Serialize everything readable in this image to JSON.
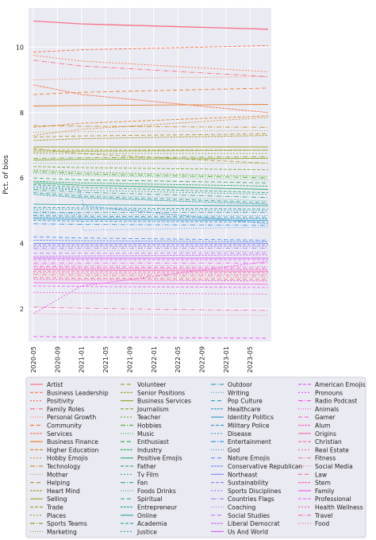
{
  "chart_data": {
    "type": "line",
    "title": "",
    "xlabel": "",
    "ylabel": "Pct. of bios",
    "grid": true,
    "legend_placement": "bottom",
    "x_ticks": [
      "2020-05",
      "2020-09",
      "2021-01",
      "2021-05",
      "2021-09",
      "2022-01",
      "2022-05",
      "2022-09",
      "2023-01",
      "2023-05"
    ],
    "y_ticks": [
      "2",
      "4",
      "6",
      "8",
      "10"
    ],
    "ylim": [
      1.0,
      11.2
    ],
    "x_range": [
      "2020-05",
      "2023-08"
    ],
    "series": [
      {
        "name": "Artist",
        "color": "#f77189",
        "start": 10.8,
        "end": 10.55
      },
      {
        "name": "Business Leadership",
        "color": "#f7754f",
        "start": 9.85,
        "end": 10.05
      },
      {
        "name": "Positivity",
        "color": "#f7754f",
        "start": 9.75,
        "end": 9.25
      },
      {
        "name": "Family Roles",
        "color": "#f77189",
        "start": 9.6,
        "end": 9.1
      },
      {
        "name": "Personal Growth",
        "color": "#f7754f",
        "start": 9.0,
        "end": 9.1
      },
      {
        "name": "Community",
        "color": "#ee7c35",
        "start": 8.55,
        "end": 8.75
      },
      {
        "name": "Services",
        "color": "#f7754f",
        "start": 8.85,
        "end": 8.0
      },
      {
        "name": "Business Finance",
        "color": "#e38232",
        "start": 8.2,
        "end": 8.25
      },
      {
        "name": "Higher Education",
        "color": "#dc8932",
        "start": 7.55,
        "end": 7.9
      },
      {
        "name": "Hobby Emojis",
        "color": "#cf8b32",
        "start": 7.3,
        "end": 7.85
      },
      {
        "name": "Technology",
        "color": "#c79332",
        "start": 7.6,
        "end": 7.55
      },
      {
        "name": "Mother",
        "color": "#bb9832",
        "start": 7.4,
        "end": 7.45
      },
      {
        "name": "Helping",
        "color": "#bb9832",
        "start": 7.25,
        "end": 7.35
      },
      {
        "name": "Heart Mind",
        "color": "#ae9d31",
        "start": 7.15,
        "end": 7.3
      },
      {
        "name": "Selling",
        "color": "#a4a031",
        "start": 6.95,
        "end": 6.95
      },
      {
        "name": "Trade",
        "color": "#9ba431",
        "start": 6.85,
        "end": 6.85
      },
      {
        "name": "Places",
        "color": "#8ea731",
        "start": 6.75,
        "end": 6.75
      },
      {
        "name": "Sports Teams",
        "color": "#82ab31",
        "start": 6.6,
        "end": 6.65
      },
      {
        "name": "Marketing",
        "color": "#72ad31",
        "start": 6.45,
        "end": 6.45
      },
      {
        "name": "Volunteer",
        "color": "#b6a031",
        "start": 6.9,
        "end": 6.45
      },
      {
        "name": "Senior Positions",
        "color": "#a0a531",
        "start": 6.8,
        "end": 6.85
      },
      {
        "name": "Business Services",
        "color": "#8aab31",
        "start": 6.55,
        "end": 6.6
      },
      {
        "name": "Journalism",
        "color": "#77ad31",
        "start": 6.35,
        "end": 6.25
      },
      {
        "name": "Teacher",
        "color": "#64b031",
        "start": 6.25,
        "end": 6.05
      },
      {
        "name": "Hobbies",
        "color": "#4ab234",
        "start": 6.2,
        "end": 6.0
      },
      {
        "name": "Music",
        "color": "#33b347",
        "start": 6.15,
        "end": 5.95
      },
      {
        "name": "Enthusiast",
        "color": "#33b15d",
        "start": 6.0,
        "end": 5.85
      },
      {
        "name": "Industry",
        "color": "#34b06a",
        "start": 5.9,
        "end": 5.75
      },
      {
        "name": "Positive Emojis",
        "color": "#35ae76",
        "start": 5.85,
        "end": 5.65
      },
      {
        "name": "Father",
        "color": "#35ad7f",
        "start": 5.8,
        "end": 5.55
      },
      {
        "name": "Tv Film",
        "color": "#36ac87",
        "start": 5.7,
        "end": 5.5
      },
      {
        "name": "Fan",
        "color": "#36ab8f",
        "start": 5.65,
        "end": 5.4
      },
      {
        "name": "Foods Drinks",
        "color": "#36aa96",
        "start": 5.6,
        "end": 5.3
      },
      {
        "name": "Spiritual",
        "color": "#37a99c",
        "start": 5.55,
        "end": 5.25
      },
      {
        "name": "Entrepreneur",
        "color": "#37a8a2",
        "start": 5.5,
        "end": 5.2
      },
      {
        "name": "Online",
        "color": "#38a7a7",
        "start": 5.2,
        "end": 5.15
      },
      {
        "name": "Academia",
        "color": "#38a6ac",
        "start": 5.1,
        "end": 5.05
      },
      {
        "name": "Justice",
        "color": "#38a5b1",
        "start": 5.05,
        "end": 5.0
      },
      {
        "name": "Outdoor",
        "color": "#39a4b6",
        "start": 4.95,
        "end": 4.95
      },
      {
        "name": "Writing",
        "color": "#39a3bb",
        "start": 4.9,
        "end": 4.85
      },
      {
        "name": "Pop Culture",
        "color": "#3aa2c0",
        "start": 4.85,
        "end": 4.8
      },
      {
        "name": "Healthcare",
        "color": "#3aa1c6",
        "start": 4.8,
        "end": 4.75
      },
      {
        "name": "Identity Politics",
        "color": "#3b9fcb",
        "start": 4.75,
        "end": 4.7
      },
      {
        "name": "Military Police",
        "color": "#3b9ed1",
        "start": 4.7,
        "end": 4.65
      },
      {
        "name": "Disease",
        "color": "#3c9cd8",
        "start": 5.75,
        "end": 4.6
      },
      {
        "name": "Entertainment",
        "color": "#3d9ae1",
        "start": 4.6,
        "end": 4.55
      },
      {
        "name": "God",
        "color": "#4097e9",
        "start": 5.0,
        "end": 4.5
      },
      {
        "name": "Nature Emojis",
        "color": "#5192f2",
        "start": 4.2,
        "end": 4.1
      },
      {
        "name": "Conservative Republican",
        "color": "#6d8df4",
        "start": 4.1,
        "end": 4.05
      },
      {
        "name": "Northeast",
        "color": "#8189f4",
        "start": 4.0,
        "end": 4.0
      },
      {
        "name": "Sustainability",
        "color": "#9184f4",
        "start": 3.95,
        "end": 3.95
      },
      {
        "name": "Sports Disciplines",
        "color": "#9f80f4",
        "start": 3.9,
        "end": 3.9
      },
      {
        "name": "Countries Flags",
        "color": "#ab7cf4",
        "start": 3.85,
        "end": 3.85
      },
      {
        "name": "Coaching",
        "color": "#b778f4",
        "start": 3.8,
        "end": 3.75
      },
      {
        "name": "Social Studies",
        "color": "#c273f4",
        "start": 3.7,
        "end": 3.7
      },
      {
        "name": "Liberal Democrat",
        "color": "#cc6ef4",
        "start": 3.6,
        "end": 3.65
      },
      {
        "name": "Us And World",
        "color": "#d767f4",
        "start": 3.55,
        "end": 3.55
      },
      {
        "name": "American Emojis",
        "color": "#e35ef4",
        "start": 3.5,
        "end": 3.5
      },
      {
        "name": "Pronouns",
        "color": "#f14cf4",
        "start": 1.85,
        "end": 3.45
      },
      {
        "name": "Radio Podcast",
        "color": "#f553e9",
        "start": 3.4,
        "end": 3.4
      },
      {
        "name": "Animals",
        "color": "#f55ddc",
        "start": 3.35,
        "end": 3.3
      },
      {
        "name": "Gamer",
        "color": "#f564d0",
        "start": 3.3,
        "end": 3.25
      },
      {
        "name": "Alum",
        "color": "#f56ac4",
        "start": 3.25,
        "end": 3.2
      },
      {
        "name": "Origins",
        "color": "#f56fb9",
        "start": 3.2,
        "end": 3.15
      },
      {
        "name": "Christian",
        "color": "#f573ad",
        "start": 3.15,
        "end": 3.1
      },
      {
        "name": "Real Estate",
        "color": "#f576a1",
        "start": 3.1,
        "end": 3.05
      },
      {
        "name": "Fitness",
        "color": "#f67995",
        "start": 3.05,
        "end": 3.0
      },
      {
        "name": "Social Media",
        "color": "#f67b89",
        "start": 3.0,
        "end": 2.95
      },
      {
        "name": "Law",
        "color": "#f77189",
        "start": 2.95,
        "end": 2.9
      },
      {
        "name": "Stem",
        "color": "#f569c7",
        "start": 2.9,
        "end": 2.85
      },
      {
        "name": "Family",
        "color": "#f15fe2",
        "start": 2.8,
        "end": 2.75
      },
      {
        "name": "Professional",
        "color": "#e966f4",
        "start": 2.7,
        "end": 2.65
      },
      {
        "name": "Health Wellness",
        "color": "#f464d4",
        "start": 2.5,
        "end": 2.45
      },
      {
        "name": "Travel",
        "color": "#f56bc0",
        "start": 2.05,
        "end": 1.95
      },
      {
        "name": "Food",
        "color": "#f577a4",
        "start": 1.85,
        "end": 1.8
      },
      {
        "name": "",
        "color": "#f14cf4",
        "start": 1.15,
        "end": 1.1
      }
    ]
  }
}
